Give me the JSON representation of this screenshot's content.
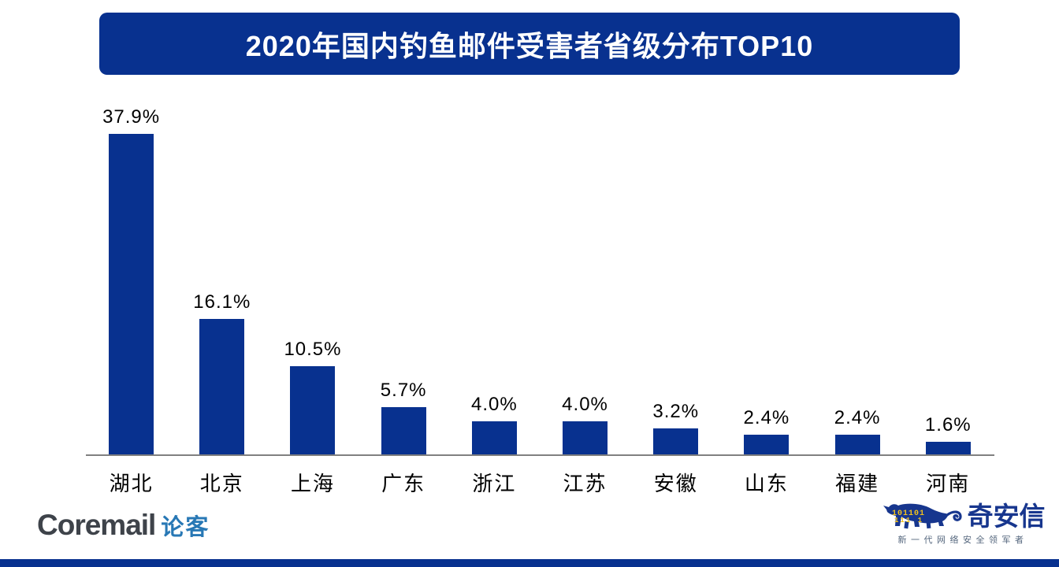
{
  "title": "2020年国内钓鱼邮件受害者省级分布TOP10",
  "chart_data": {
    "type": "bar",
    "title": "2020年国内钓鱼邮件受害者省级分布TOP10",
    "categories": [
      "湖北",
      "北京",
      "上海",
      "广东",
      "浙江",
      "江苏",
      "安徽",
      "山东",
      "福建",
      "河南"
    ],
    "values": [
      37.9,
      16.1,
      10.5,
      5.7,
      4.0,
      4.0,
      3.2,
      2.4,
      2.4,
      1.6
    ],
    "data_labels": [
      "37.9%",
      "16.1%",
      "10.5%",
      "5.7%",
      "4.0%",
      "4.0%",
      "3.2%",
      "2.4%",
      "2.4%",
      "1.6%"
    ],
    "xlabel": "",
    "ylabel": "",
    "ylim": [
      0,
      40
    ],
    "grid": false,
    "legend": false,
    "bar_color": "#08318f",
    "axis_color": "#808080"
  },
  "footer": {
    "coremail": {
      "latin": "Coremail",
      "cjk": "论客"
    },
    "qianxin": {
      "name": "奇安信",
      "tagline": "新一代网络安全领军者",
      "binary_row1": "101101",
      "binary_row2": "111 1"
    }
  },
  "colors": {
    "accent_blue": "#08318f",
    "axis_gray": "#808080",
    "coremail_gray": "#3e434a",
    "coremail_blue": "#2878b5",
    "qianxin_navy": "#17368e",
    "tagline_gray": "#55677e",
    "binary_yellow": "#f2c21d",
    "background": "#ffffff"
  }
}
